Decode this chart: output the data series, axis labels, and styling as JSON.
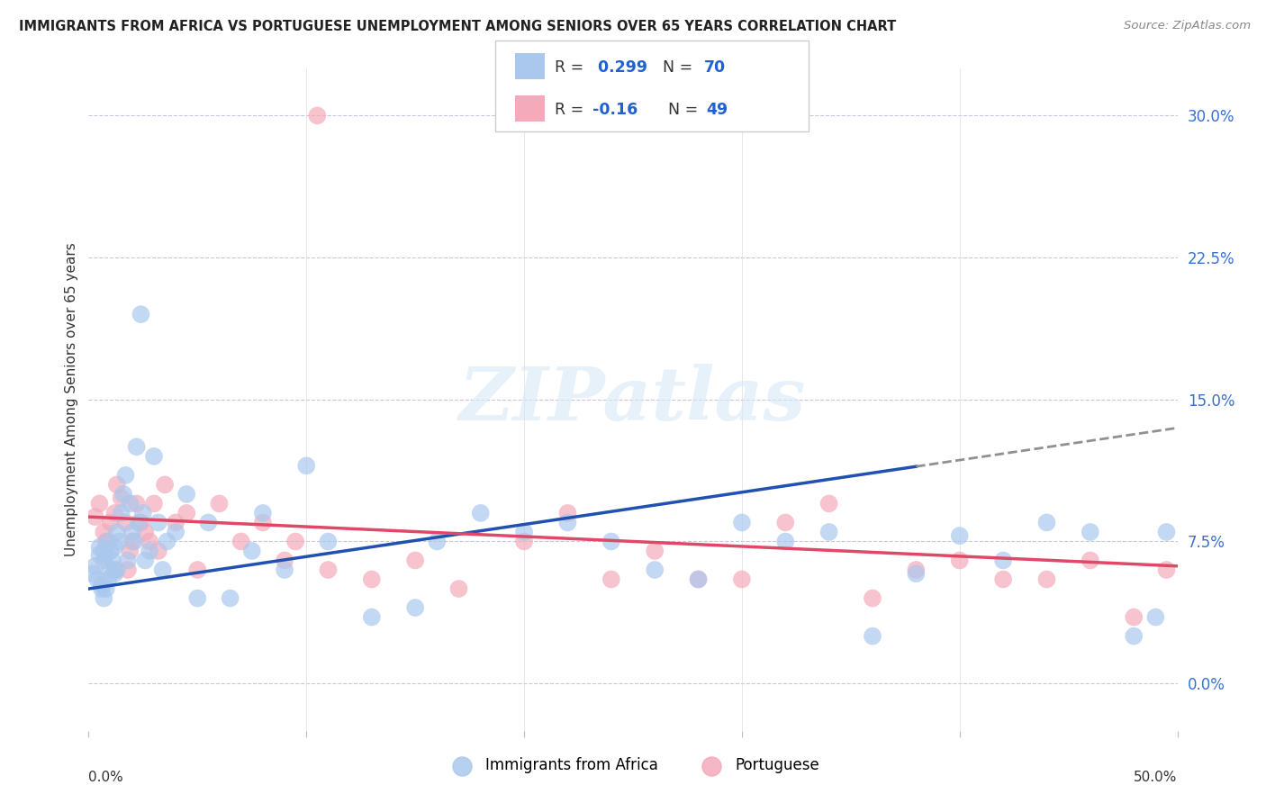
{
  "title": "IMMIGRANTS FROM AFRICA VS PORTUGUESE UNEMPLOYMENT AMONG SENIORS OVER 65 YEARS CORRELATION CHART",
  "source": "Source: ZipAtlas.com",
  "ylabel": "Unemployment Among Seniors over 65 years",
  "ytick_vals": [
    0.0,
    7.5,
    15.0,
    22.5,
    30.0
  ],
  "xlim": [
    0.0,
    50.0
  ],
  "ylim": [
    -2.5,
    32.5
  ],
  "blue_R": 0.299,
  "blue_N": 70,
  "pink_R": -0.16,
  "pink_N": 49,
  "blue_color": "#aac8ed",
  "pink_color": "#f4aabb",
  "blue_line_color": "#2050b0",
  "pink_line_color": "#e04868",
  "dash_color": "#909090",
  "blue_line_y0": 5.0,
  "blue_line_y50": 13.5,
  "pink_line_y0": 8.8,
  "pink_line_y50": 6.2,
  "blue_dash_start": 38,
  "watermark_text": "ZIPatlas",
  "blue_scatter_x": [
    0.2,
    0.3,
    0.4,
    0.5,
    0.5,
    0.6,
    0.7,
    0.7,
    0.8,
    0.8,
    0.9,
    0.9,
    1.0,
    1.0,
    1.1,
    1.2,
    1.2,
    1.3,
    1.3,
    1.4,
    1.5,
    1.6,
    1.7,
    1.8,
    1.9,
    2.0,
    2.1,
    2.2,
    2.3,
    2.5,
    2.6,
    2.8,
    3.0,
    3.2,
    3.4,
    3.6,
    4.0,
    4.5,
    5.0,
    5.5,
    6.5,
    7.5,
    8.0,
    9.0,
    10.0,
    11.0,
    13.0,
    15.0,
    16.0,
    18.0,
    20.0,
    22.0,
    24.0,
    26.0,
    28.0,
    30.0,
    32.0,
    34.0,
    36.0,
    38.0,
    40.0,
    42.0,
    44.0,
    46.0,
    48.0,
    49.0,
    49.5,
    0.6,
    0.7,
    2.4
  ],
  "blue_scatter_y": [
    5.8,
    6.2,
    5.5,
    6.8,
    7.2,
    5.2,
    6.5,
    7.0,
    5.0,
    6.8,
    5.5,
    7.5,
    6.0,
    7.0,
    6.5,
    5.8,
    7.2,
    6.0,
    8.0,
    7.5,
    9.0,
    10.0,
    11.0,
    6.5,
    9.5,
    8.0,
    7.5,
    12.5,
    8.5,
    9.0,
    6.5,
    7.0,
    12.0,
    8.5,
    6.0,
    7.5,
    8.0,
    10.0,
    4.5,
    8.5,
    4.5,
    7.0,
    9.0,
    6.0,
    11.5,
    7.5,
    3.5,
    4.0,
    7.5,
    9.0,
    8.0,
    8.5,
    7.5,
    6.0,
    5.5,
    8.5,
    7.5,
    8.0,
    2.5,
    5.8,
    7.8,
    6.5,
    8.5,
    8.0,
    2.5,
    3.5,
    8.0,
    5.0,
    4.5,
    19.5
  ],
  "pink_scatter_x": [
    0.3,
    0.5,
    0.7,
    0.8,
    1.0,
    1.2,
    1.3,
    1.5,
    1.7,
    1.9,
    2.0,
    2.2,
    2.4,
    2.6,
    2.8,
    3.0,
    3.2,
    3.5,
    4.0,
    4.5,
    5.0,
    6.0,
    7.0,
    8.0,
    9.0,
    11.0,
    13.0,
    15.0,
    17.0,
    20.0,
    22.0,
    24.0,
    26.0,
    28.0,
    30.0,
    32.0,
    34.0,
    36.0,
    38.0,
    40.0,
    42.0,
    44.0,
    46.0,
    48.0,
    49.5,
    9.5,
    10.5,
    1.2,
    1.8
  ],
  "pink_scatter_y": [
    8.8,
    9.5,
    8.0,
    7.5,
    8.5,
    9.0,
    10.5,
    9.8,
    8.5,
    7.0,
    7.5,
    9.5,
    8.5,
    8.0,
    7.5,
    9.5,
    7.0,
    10.5,
    8.5,
    9.0,
    6.0,
    9.5,
    7.5,
    8.5,
    6.5,
    6.0,
    5.5,
    6.5,
    5.0,
    7.5,
    9.0,
    5.5,
    7.0,
    5.5,
    5.5,
    8.5,
    9.5,
    4.5,
    6.0,
    6.5,
    5.5,
    5.5,
    6.5,
    3.5,
    6.0,
    7.5,
    30.0,
    6.0,
    6.0
  ]
}
